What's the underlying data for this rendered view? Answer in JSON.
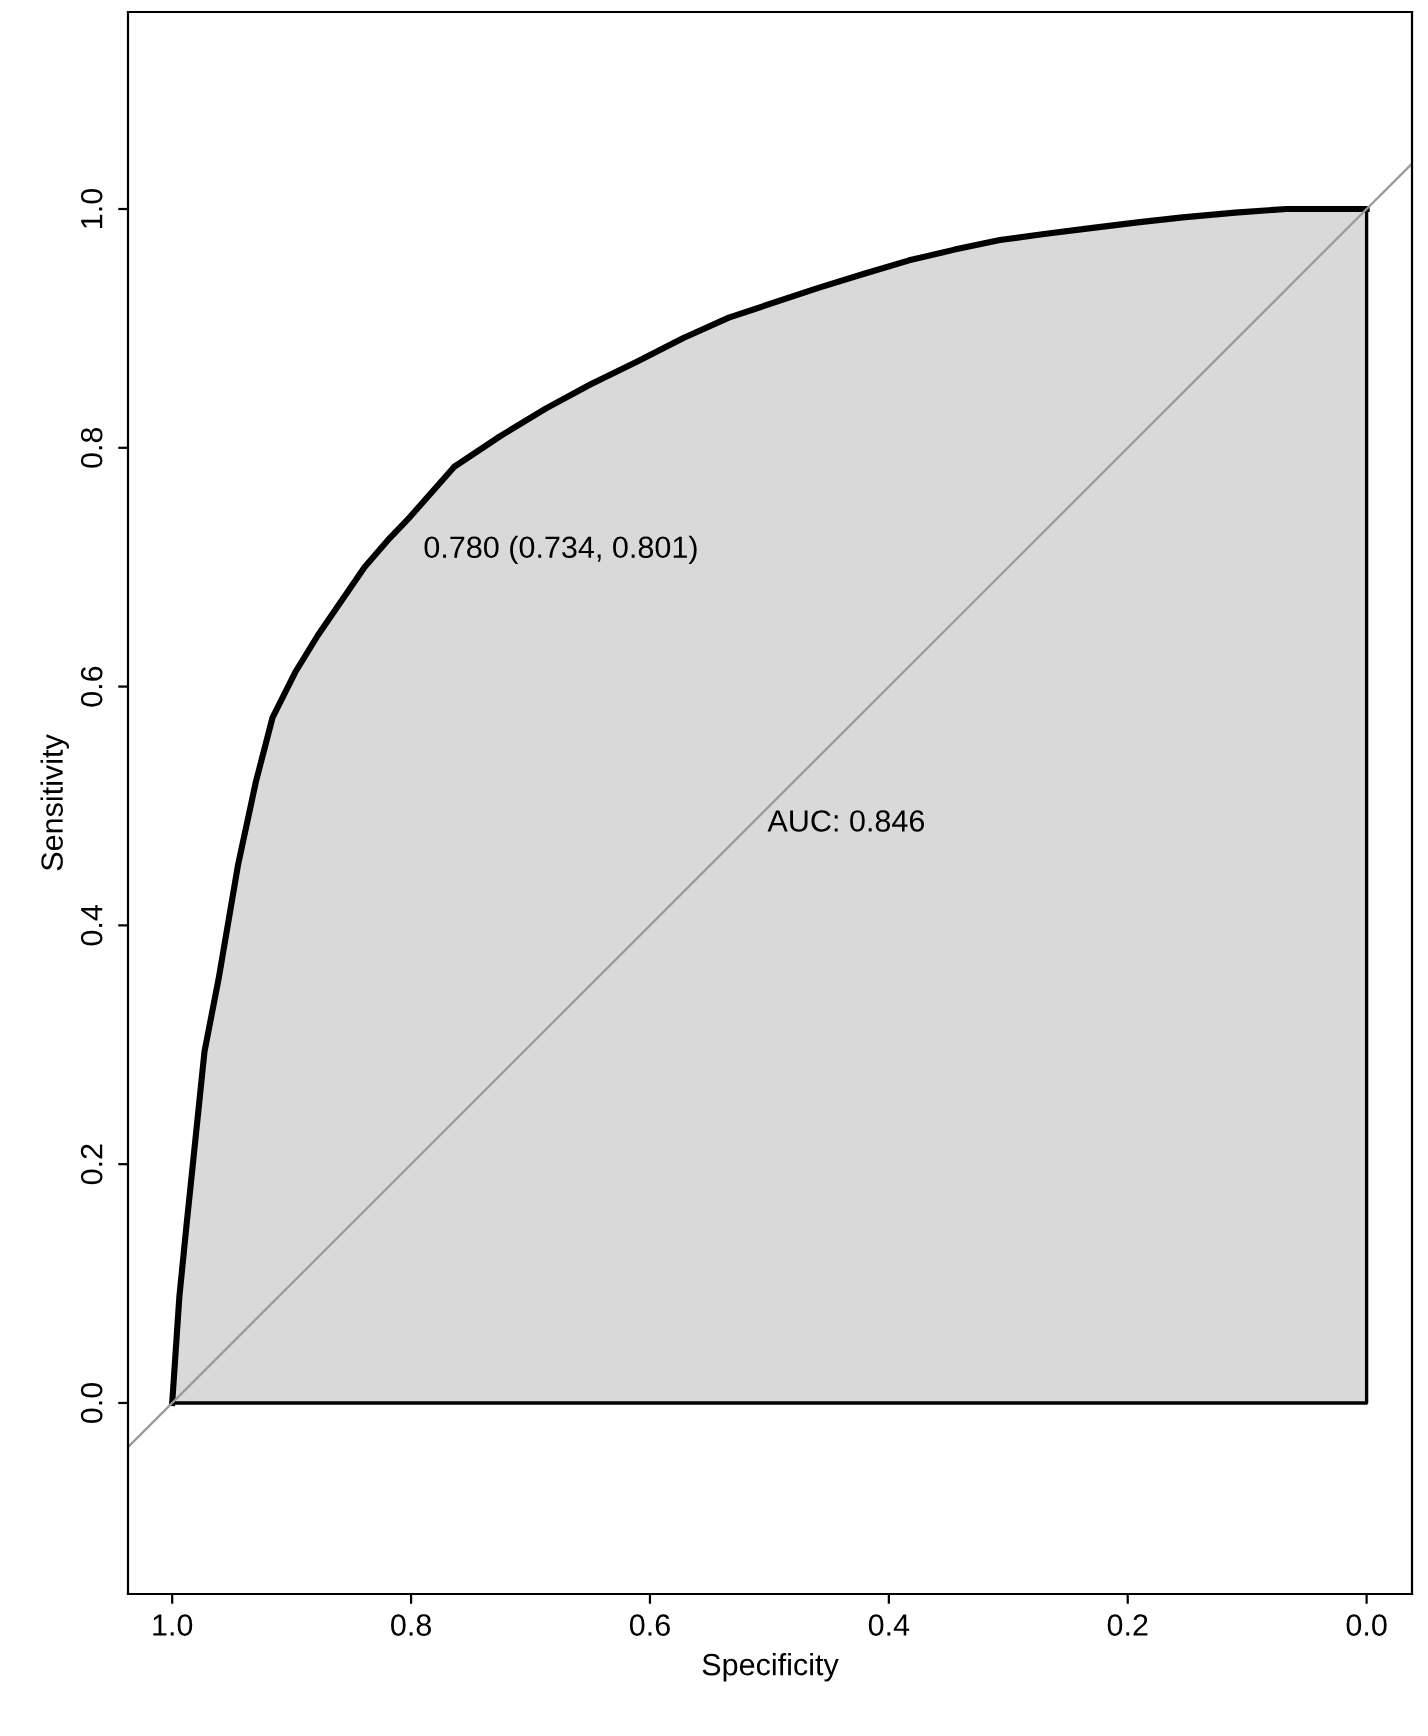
{
  "chart_data": {
    "type": "line",
    "xlabel": "Specificity",
    "ylabel": "Sensitivity",
    "x": [
      1.0,
      0.994,
      0.988,
      0.98,
      0.973,
      0.961,
      0.945,
      0.93,
      0.916,
      0.897,
      0.878,
      0.839,
      0.82,
      0.801,
      0.764,
      0.725,
      0.687,
      0.65,
      0.611,
      0.572,
      0.534,
      0.459,
      0.42,
      0.383,
      0.345,
      0.307,
      0.27,
      0.231,
      0.19,
      0.154,
      0.11,
      0.067,
      0.0
    ],
    "series": [
      {
        "type": "area",
        "color": "#d9d9d9",
        "values": [
          0.0,
          0.089,
          0.149,
          0.226,
          0.294,
          0.356,
          0.45,
          0.52,
          0.574,
          0.612,
          0.643,
          0.7,
          0.722,
          0.742,
          0.784,
          0.81,
          0.833,
          0.853,
          0.872,
          0.892,
          0.909,
          0.934,
          0.946,
          0.957,
          0.966,
          0.974,
          0.979,
          0.984,
          0.989,
          0.993,
          0.997,
          1.0,
          1.0
        ]
      },
      {
        "color": "#999999",
        "x": [
          1.037,
          -0.038
        ],
        "values": [
          -0.037,
          1.038
        ]
      }
    ],
    "xlim": [
      1.037,
      -0.038
    ],
    "ylim": [
      -0.16,
      1.165
    ],
    "xticks": [
      {
        "value": 1.0,
        "label": "1.0"
      },
      {
        "value": 0.8,
        "label": "0.8"
      },
      {
        "value": 0.6,
        "label": "0.6"
      },
      {
        "value": 0.4,
        "label": "0.4"
      },
      {
        "value": 0.2,
        "label": "0.2"
      },
      {
        "value": 0.0,
        "label": "0.0"
      }
    ],
    "yticks": [
      {
        "value": 0.0,
        "label": "0.0"
      },
      {
        "value": 0.2,
        "label": "0.2"
      },
      {
        "value": 0.4,
        "label": "0.4"
      },
      {
        "value": 0.6,
        "label": "0.6"
      },
      {
        "value": 0.8,
        "label": "0.8"
      },
      {
        "value": 1.0,
        "label": "1.0"
      }
    ],
    "annotations": [
      "0.780 (0.734, 0.801)",
      "AUC: 0.846"
    ]
  }
}
